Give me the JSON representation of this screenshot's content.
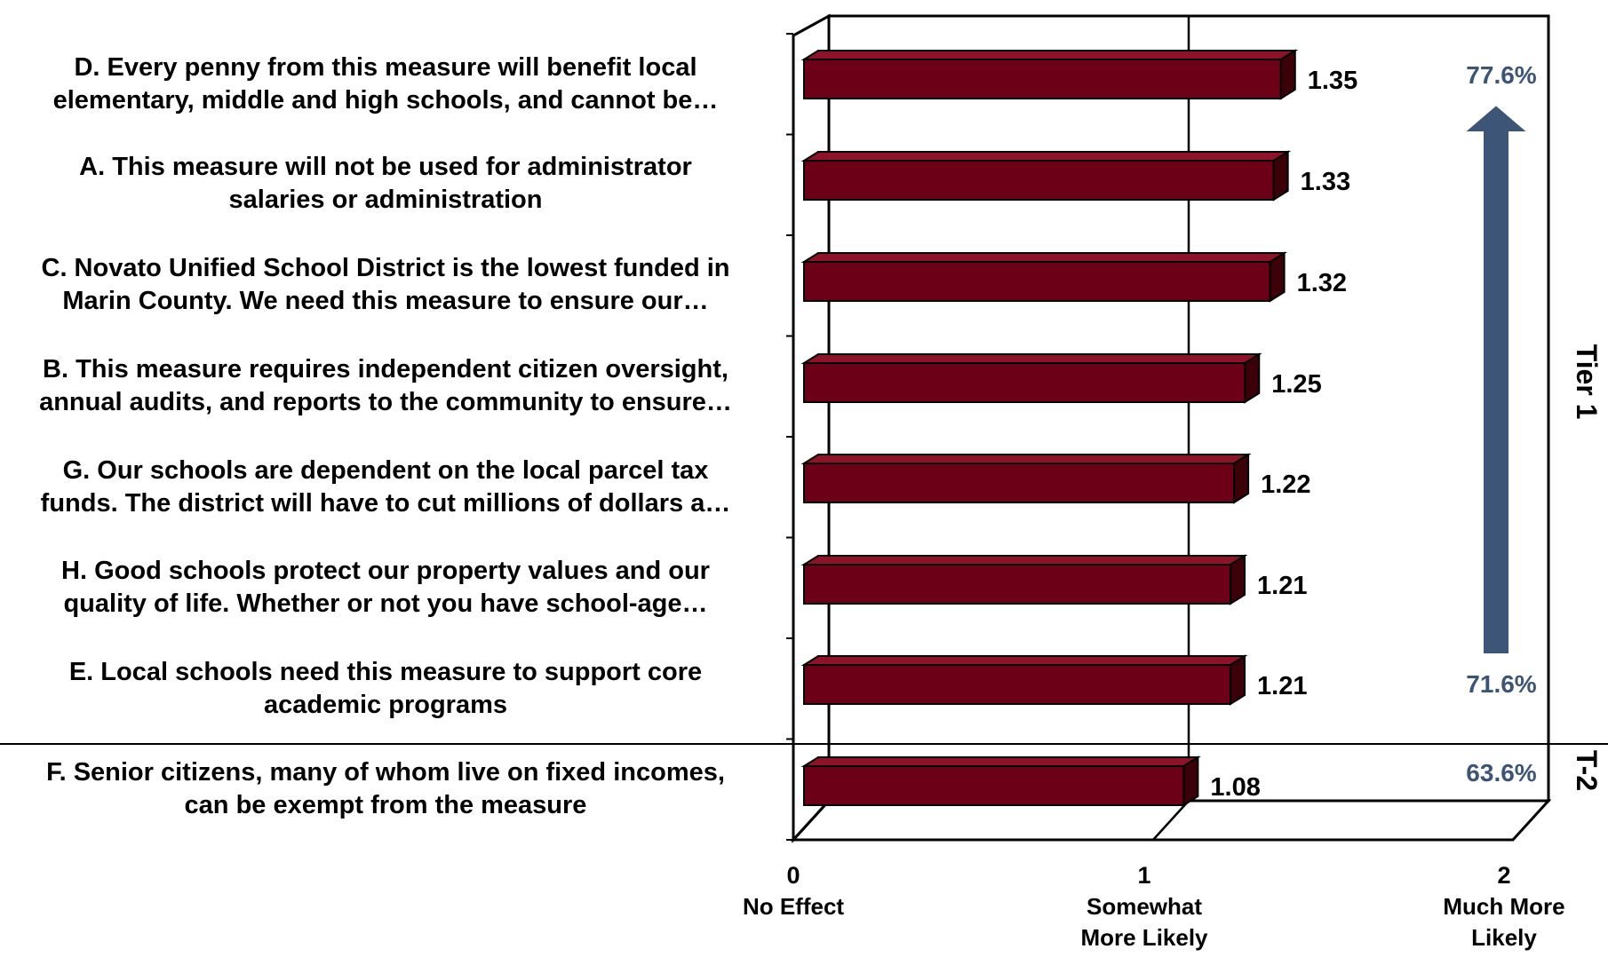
{
  "chart_data": {
    "type": "bar",
    "orientation": "horizontal",
    "categories": [
      {
        "lines": [
          "D. Every penny from this measure will benefit local",
          "elementary, middle and high schools, and cannot be…"
        ]
      },
      {
        "lines": [
          "A. This measure will not be used for administrator",
          "salaries or administration"
        ]
      },
      {
        "lines": [
          "C. Novato Unified School District is the lowest funded in",
          "Marin County. We need this measure to ensure our…"
        ]
      },
      {
        "lines": [
          "B. This measure requires independent citizen oversight,",
          "annual audits, and reports to the community to ensure…"
        ]
      },
      {
        "lines": [
          "G. Our schools are dependent on the local parcel tax",
          "funds.  The district will have to cut millions of dollars a…"
        ]
      },
      {
        "lines": [
          "H. Good schools protect our property values and our",
          "quality of life. Whether or not you have school-age…"
        ]
      },
      {
        "lines": [
          "E. Local schools need this measure to support core",
          "academic programs"
        ]
      },
      {
        "lines": [
          "F. Senior citizens, many of whom live on fixed incomes,",
          "can be exempt from the measure"
        ]
      }
    ],
    "values": [
      1.35,
      1.33,
      1.32,
      1.25,
      1.22,
      1.21,
      1.21,
      1.08
    ],
    "value_labels": [
      "1.35",
      "1.33",
      "1.32",
      "1.25",
      "1.22",
      "1.21",
      "1.21",
      "1.08"
    ],
    "xlim": [
      0,
      2
    ],
    "x_ticks": [
      {
        "value": 0,
        "label": "0",
        "caption": [
          "No Effect"
        ]
      },
      {
        "value": 1,
        "label": "1",
        "caption": [
          "Somewhat",
          "More  Likely"
        ]
      },
      {
        "value": 2,
        "label": "2",
        "caption": [
          "Much More",
          "Likely"
        ]
      }
    ],
    "bar_color": "#6b0016",
    "bar_top_color": "#8e1228",
    "bar_side_color": "#3c0009",
    "annotations": {
      "percent_color": "#3d5575",
      "arrow_color": "#3d5577",
      "tier1_top_percent": "77.6%",
      "tier1_bottom_percent": "71.6%",
      "tier2_percent": "63.6%",
      "tier1_label": "Tier 1",
      "tier2_label": "T-2"
    },
    "grid": true,
    "legend": "none",
    "title": "",
    "xlabel": "",
    "ylabel": ""
  }
}
